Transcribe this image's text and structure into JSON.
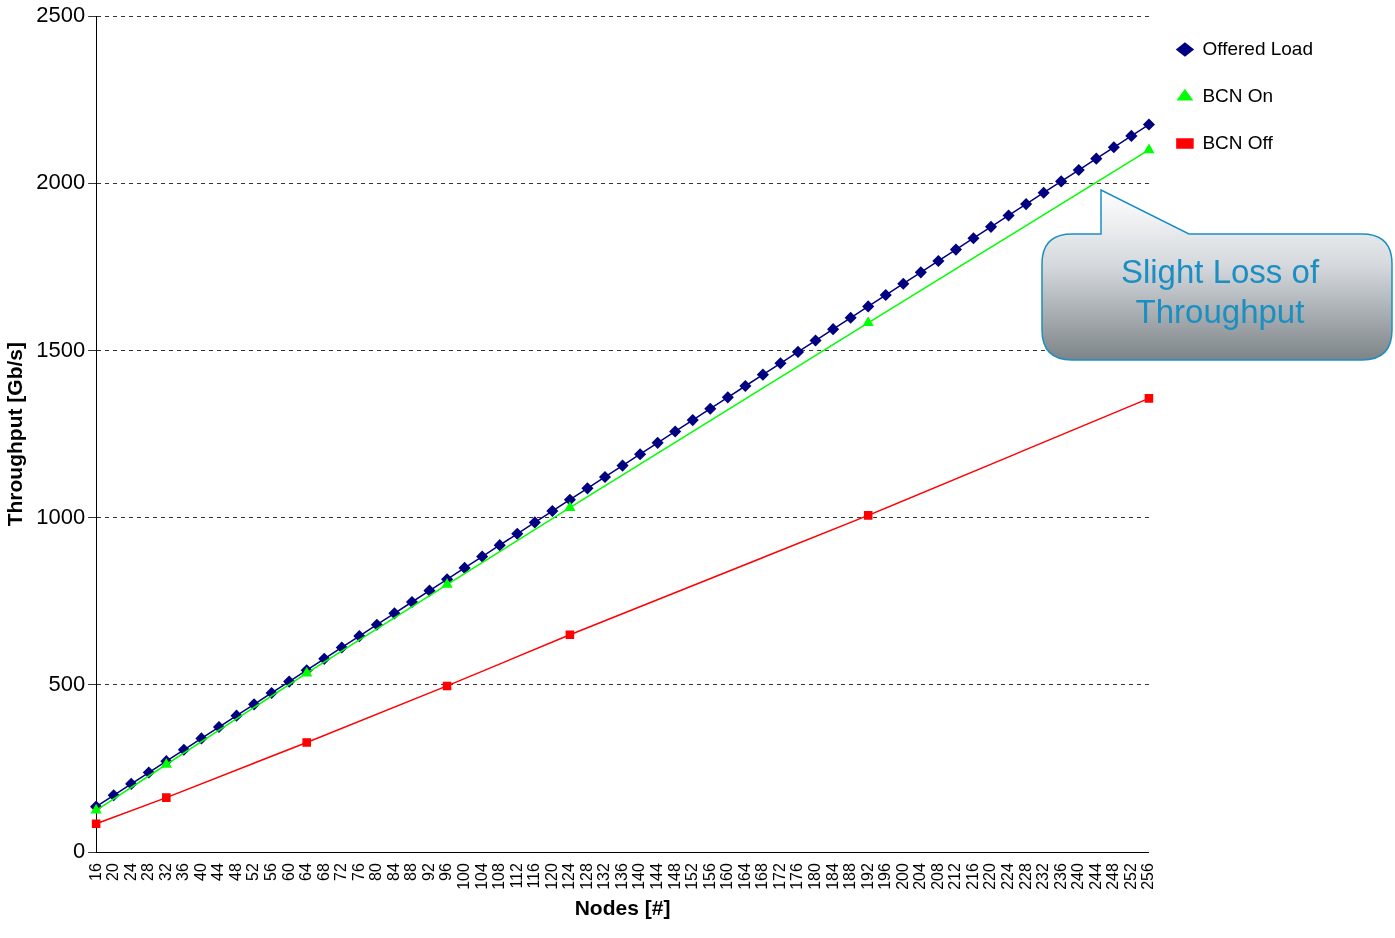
{
  "chart_data": {
    "type": "line",
    "xlabel": "Nodes [#]",
    "ylabel": "Throughput [Gb/s]",
    "categories": [
      "16",
      "20",
      "24",
      "28",
      "32",
      "36",
      "40",
      "44",
      "48",
      "52",
      "56",
      "60",
      "64",
      "68",
      "72",
      "76",
      "80",
      "84",
      "88",
      "92",
      "96",
      "100",
      "104",
      "108",
      "112",
      "116",
      "120",
      "124",
      "128",
      "132",
      "136",
      "140",
      "144",
      "148",
      "152",
      "156",
      "160",
      "164",
      "168",
      "172",
      "176",
      "180",
      "184",
      "188",
      "192",
      "196",
      "200",
      "204",
      "208",
      "212",
      "216",
      "220",
      "224",
      "228",
      "232",
      "236",
      "240",
      "244",
      "248",
      "252",
      "256"
    ],
    "series": [
      {
        "name": "Offered Load",
        "color": "#000080",
        "marker": "diamond",
        "values": [
          136,
          170,
          204,
          238,
          272,
          306,
          340,
          374,
          408,
          442,
          476,
          510,
          544,
          578,
          612,
          646,
          680,
          714,
          748,
          782,
          816,
          850,
          884,
          918,
          952,
          986,
          1020,
          1054,
          1088,
          1122,
          1156,
          1190,
          1224,
          1258,
          1292,
          1326,
          1360,
          1394,
          1428,
          1462,
          1496,
          1530,
          1564,
          1598,
          1632,
          1666,
          1700,
          1734,
          1768,
          1802,
          1836,
          1870,
          1904,
          1938,
          1972,
          2006,
          2040,
          2074,
          2108,
          2142,
          2176
        ]
      },
      {
        "name": "BCN On",
        "color": "#00ff00",
        "marker": "triangle",
        "values": [
          125,
          null,
          null,
          null,
          262,
          null,
          null,
          null,
          null,
          null,
          null,
          null,
          535,
          null,
          null,
          null,
          null,
          null,
          null,
          null,
          800,
          null,
          null,
          null,
          null,
          null,
          null,
          1030,
          null,
          null,
          null,
          null,
          null,
          null,
          null,
          null,
          null,
          null,
          null,
          null,
          null,
          null,
          null,
          null,
          1583,
          null,
          null,
          null,
          null,
          null,
          null,
          null,
          null,
          null,
          null,
          null,
          null,
          null,
          null,
          null,
          2100
        ]
      },
      {
        "name": "BCN Off",
        "color": "#ff0000",
        "marker": "square",
        "values": [
          85,
          null,
          null,
          null,
          163,
          null,
          null,
          null,
          null,
          null,
          null,
          null,
          328,
          null,
          null,
          null,
          null,
          null,
          null,
          null,
          497,
          null,
          null,
          null,
          null,
          null,
          null,
          650,
          null,
          null,
          null,
          null,
          null,
          null,
          null,
          null,
          null,
          null,
          null,
          null,
          null,
          null,
          null,
          null,
          1007,
          null,
          null,
          null,
          null,
          null,
          null,
          null,
          null,
          null,
          null,
          null,
          null,
          null,
          null,
          null,
          1357
        ]
      }
    ],
    "ylim": [
      0,
      2500
    ],
    "yticks": [
      0,
      500,
      1000,
      1500,
      2000,
      2500
    ],
    "grid": "y",
    "legend": "top right",
    "annotations": [
      "Slight Loss of Throughput"
    ]
  }
}
